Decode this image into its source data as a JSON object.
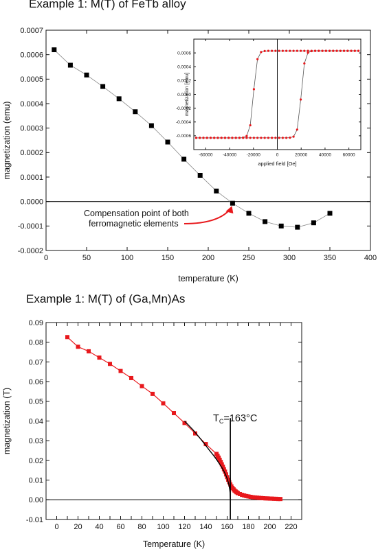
{
  "chart_data": [
    {
      "type": "scatter",
      "title": "Example 1: M(T) of FeTb alloy",
      "xlabel": "temperature (K)",
      "ylabel": "magnetization (emu)",
      "xlim": [
        0,
        400
      ],
      "ylim": [
        -0.0002,
        0.0007
      ],
      "xticks": [
        0,
        50,
        100,
        150,
        200,
        250,
        300,
        350,
        400
      ],
      "yticks": [
        -0.0002,
        -0.0001,
        0.0,
        0.0001,
        0.0002,
        0.0003,
        0.0004,
        0.0005,
        0.0006,
        0.0007
      ],
      "xtick_labels": [
        "0",
        "50",
        "100",
        "150",
        "200",
        "250",
        "300",
        "350",
        "400"
      ],
      "ytick_labels": [
        "-0.0002",
        "-0.0001",
        "0.0000",
        "0.0001",
        "0.0002",
        "0.0003",
        "0.0004",
        "0.0005",
        "0.0006",
        "0.0007"
      ],
      "grid": false,
      "zero_line": true,
      "marker_color": "#000000",
      "line_color": "#888888",
      "series": [
        {
          "name": "",
          "x": [
            10,
            30,
            50,
            70,
            90,
            110,
            130,
            150,
            170,
            190,
            210,
            230,
            250,
            270,
            290,
            310,
            330,
            350
          ],
          "y": [
            0.00062,
            0.000557,
            0.000517,
            0.00047,
            0.00042,
            0.000367,
            0.00031,
            0.000243,
            0.000173,
            0.000107,
            4.3e-05,
            -7e-06,
            -4.8e-05,
            -8.2e-05,
            -0.0001,
            -0.000105,
            -8.7e-05,
            -4.8e-05
          ]
        }
      ],
      "annotation": {
        "line1": "Compensation point of both",
        "line2": "ferromagnetic elements",
        "arrow_color": "#e8181c",
        "target": [
          230,
          -7e-06
        ]
      },
      "inset": {
        "type": "line",
        "xlabel": "applied field [Oe]",
        "ylabel": "magnetization [emu]",
        "xlim": [
          -70000,
          70000
        ],
        "ylim": [
          -0.0008,
          0.0008
        ],
        "xticks": [
          -60000,
          -40000,
          -20000,
          0,
          20000,
          40000,
          60000
        ],
        "yticks": [
          -0.0006,
          -0.0004,
          -0.0002,
          0.0,
          0.0002,
          0.0004,
          0.0006
        ],
        "xtick_labels": [
          "-60000",
          "-40000",
          "-20000",
          "0",
          "20000",
          "40000",
          "60000"
        ],
        "ytick_labels": [
          "-0.0006",
          "-0.0004",
          "-0.0002",
          "0.0000",
          "0.0002",
          "0.0004",
          "0.0006"
        ],
        "marker_color": "#e8181c",
        "line_color": "#555555",
        "loop": {
          "Ms": 0.00063,
          "coercive_field": 20000,
          "width": 3000,
          "x_min": -68000,
          "x_max": 68000,
          "points_per_branch": 46
        }
      }
    },
    {
      "type": "line",
      "title_main": "Example 1: M(T) of (Ga,Mn)As",
      "xlabel": "Temperature (K)",
      "ylabel": "magnetization (T)",
      "xlim": [
        -10,
        230
      ],
      "ylim": [
        -0.01,
        0.09
      ],
      "xticks": [
        0,
        10,
        20,
        30,
        40,
        50,
        60,
        70,
        80,
        90,
        100,
        110,
        120,
        130,
        140,
        150,
        160,
        170,
        180,
        190,
        200,
        210,
        220
      ],
      "xtick_labels": [
        "0",
        "",
        "20",
        "",
        "40",
        "",
        "60",
        "",
        "80",
        "",
        "100",
        "",
        "120",
        "",
        "140",
        "",
        "160",
        "",
        "180",
        "",
        "200",
        "",
        "220"
      ],
      "yticks": [
        -0.01,
        0.0,
        0.01,
        0.02,
        0.03,
        0.04,
        0.05,
        0.06,
        0.07,
        0.08,
        0.09
      ],
      "ytick_labels": [
        "-0.01",
        "0.00",
        "0.01",
        "0.02",
        "0.03",
        "0.04",
        "0.05",
        "0.06",
        "0.07",
        "0.08",
        "0.09"
      ],
      "grid": false,
      "zero_line": true,
      "marker_color": "#e8181c",
      "line_color": "#e8181c",
      "series": [
        {
          "name": "",
          "x": [
            10,
            20,
            30,
            40,
            50,
            60,
            70,
            80,
            90,
            100,
            110,
            120,
            130,
            140,
            150,
            151,
            152,
            153,
            154,
            155,
            156,
            157,
            158,
            159,
            160,
            161,
            162,
            163,
            164,
            165,
            166,
            167,
            168,
            169,
            170,
            172,
            174,
            176,
            178,
            180,
            182,
            184,
            186,
            188,
            190,
            192,
            194,
            196,
            198,
            200,
            202,
            204,
            206,
            208,
            210
          ],
          "y": [
            0.0826,
            0.0777,
            0.0754,
            0.0722,
            0.069,
            0.0654,
            0.0618,
            0.0577,
            0.0538,
            0.049,
            0.044,
            0.039,
            0.0337,
            0.0283,
            0.0233,
            0.0223,
            0.0214,
            0.0203,
            0.0192,
            0.018,
            0.0168,
            0.0155,
            0.0143,
            0.0129,
            0.0115,
            0.0102,
            0.0089,
            0.0078,
            0.0068,
            0.006,
            0.0053,
            0.0047,
            0.0042,
            0.0038,
            0.0034,
            0.0029,
            0.0025,
            0.0022,
            0.0019,
            0.0017,
            0.0015,
            0.0013,
            0.0012,
            0.0011,
            0.001,
            0.0009,
            0.0008,
            0.0007,
            0.0007,
            0.0006,
            0.0006,
            0.0005,
            0.0005,
            0.0004,
            0.0004
          ]
        }
      ],
      "fit": {
        "color": "#000000",
        "x": [
          120,
          128,
          134,
          139,
          143,
          147,
          150,
          152.5,
          155,
          157,
          158.5,
          160,
          161,
          161.8,
          162.4,
          162.8,
          163
        ],
        "y": [
          0.04,
          0.0355,
          0.0316,
          0.0282,
          0.0254,
          0.0227,
          0.0205,
          0.0185,
          0.0164,
          0.0145,
          0.0128,
          0.0108,
          0.009,
          0.0072,
          0.0053,
          0.0035,
          0.0
        ]
      },
      "tc_line": {
        "x": 163,
        "y_top": 0.0415,
        "color": "#000000"
      },
      "tc_label": {
        "main": "T",
        "sub": "C",
        "rest": "=163°C"
      }
    }
  ]
}
